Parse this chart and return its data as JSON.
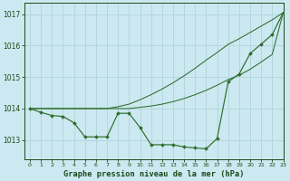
{
  "title": "Graphe pression niveau de la mer (hPa)",
  "background_color": "#cce8f0",
  "grid_color": "#b0d4dc",
  "line_color": "#2d6e2d",
  "text_color": "#1a4a1a",
  "xlim": [
    -0.5,
    23
  ],
  "ylim": [
    1012.4,
    1017.35
  ],
  "yticks": [
    1013,
    1014,
    1015,
    1016,
    1017
  ],
  "xticks": [
    0,
    1,
    2,
    3,
    4,
    5,
    6,
    7,
    8,
    9,
    10,
    11,
    12,
    13,
    14,
    15,
    16,
    17,
    18,
    19,
    20,
    21,
    22,
    23
  ],
  "hours": [
    0,
    1,
    2,
    3,
    4,
    5,
    6,
    7,
    8,
    9,
    10,
    11,
    12,
    13,
    14,
    15,
    16,
    17,
    18,
    19,
    20,
    21,
    22,
    23
  ],
  "pressure_main": [
    1014.0,
    1013.88,
    1013.78,
    1013.75,
    1013.55,
    1013.1,
    1013.1,
    1013.1,
    1013.85,
    1013.85,
    1013.4,
    1012.85,
    1012.85,
    1012.85,
    1012.78,
    1012.75,
    1012.72,
    1013.05,
    1014.85,
    1015.1,
    1015.75,
    1016.05,
    1016.35,
    1017.05
  ],
  "pressure_trend1": [
    1014.0,
    1014.0,
    1014.0,
    1014.0,
    1014.0,
    1014.0,
    1014.0,
    1014.0,
    1014.0,
    1014.0,
    1014.04,
    1014.08,
    1014.14,
    1014.22,
    1014.32,
    1014.44,
    1014.58,
    1014.74,
    1014.92,
    1015.06,
    1015.25,
    1015.48,
    1015.72,
    1017.05
  ],
  "pressure_trend2": [
    1014.0,
    1014.0,
    1014.0,
    1014.0,
    1014.0,
    1014.0,
    1014.0,
    1014.0,
    1014.06,
    1014.14,
    1014.28,
    1014.44,
    1014.62,
    1014.82,
    1015.04,
    1015.28,
    1015.54,
    1015.78,
    1016.04,
    1016.22,
    1016.42,
    1016.62,
    1016.82,
    1017.05
  ]
}
